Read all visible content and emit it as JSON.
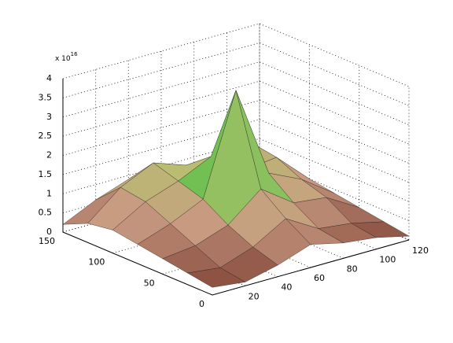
{
  "chart_data": {
    "type": "surface",
    "x": [
      0,
      20,
      40,
      60,
      80,
      100,
      120
    ],
    "y": [
      0,
      25,
      50,
      75,
      100,
      125,
      150
    ],
    "z": [
      [
        0.2,
        0.1,
        0.3,
        0.6,
        0.4,
        0.3,
        0.1
      ],
      [
        0.3,
        0.2,
        0.5,
        1.0,
        0.5,
        0.4,
        0.2
      ],
      [
        0.4,
        0.5,
        0.8,
        1.5,
        0.9,
        0.8,
        0.3
      ],
      [
        0.5,
        0.8,
        1.2,
        3.8,
        1.4,
        1.0,
        0.4
      ],
      [
        0.6,
        1.1,
        1.4,
        1.8,
        1.2,
        1.3,
        0.5
      ],
      [
        0.5,
        1.2,
        1.6,
        1.3,
        1.0,
        1.4,
        0.4
      ],
      [
        0.2,
        0.6,
        0.9,
        0.8,
        0.7,
        0.6,
        0.2
      ]
    ],
    "xlim": [
      0,
      120
    ],
    "ylim": [
      0,
      150
    ],
    "zlim": [
      0,
      4
    ],
    "xticks": [
      20,
      40,
      60,
      80,
      100,
      120
    ],
    "yticks": [
      0,
      50,
      100,
      150
    ],
    "zticks": [
      0,
      0.5,
      1,
      1.5,
      2,
      2.5,
      3,
      3.5,
      4
    ],
    "z_multiplier": "x 10",
    "z_multiplier_exponent": "16",
    "grid": true,
    "colormap": [
      "#7a3b2e",
      "#c89a82",
      "#b8c070",
      "#3cc03c",
      "#3030c8",
      "#d040d8"
    ]
  }
}
